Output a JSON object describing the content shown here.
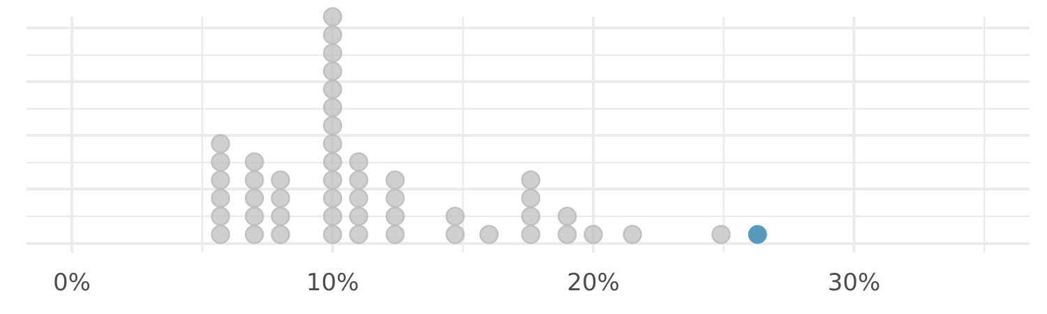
{
  "chart_data": {
    "type": "dotplot",
    "title": "",
    "xlabel": "",
    "ylabel": "",
    "xlim": [
      -0.018,
      0.368
    ],
    "x_ticks": [
      0.0,
      0.1,
      0.2,
      0.3
    ],
    "x_tick_labels": [
      "0%",
      "10%",
      "20%",
      "30%"
    ],
    "grid": true,
    "legend": "none",
    "colors": {
      "dots": "#bdbdbd",
      "highlight": "#569bbd",
      "grid": "#ebebeb",
      "tick_label": "#4d4d4d"
    },
    "series": [
      {
        "values": [
          0.057,
          0.057,
          0.057,
          0.057,
          0.057,
          0.057,
          0.07,
          0.07,
          0.07,
          0.07,
          0.07,
          0.08,
          0.08,
          0.08,
          0.08,
          0.1,
          0.1,
          0.1,
          0.1,
          0.1,
          0.1,
          0.1,
          0.1,
          0.1,
          0.1,
          0.1,
          0.1,
          0.1,
          0.11,
          0.11,
          0.11,
          0.11,
          0.11,
          0.124,
          0.124,
          0.124,
          0.124,
          0.147,
          0.147,
          0.16,
          0.176,
          0.176,
          0.176,
          0.176,
          0.19,
          0.19,
          0.2,
          0.215,
          0.249
        ]
      },
      {
        "values": [
          0.263
        ],
        "highlight": true
      }
    ]
  }
}
